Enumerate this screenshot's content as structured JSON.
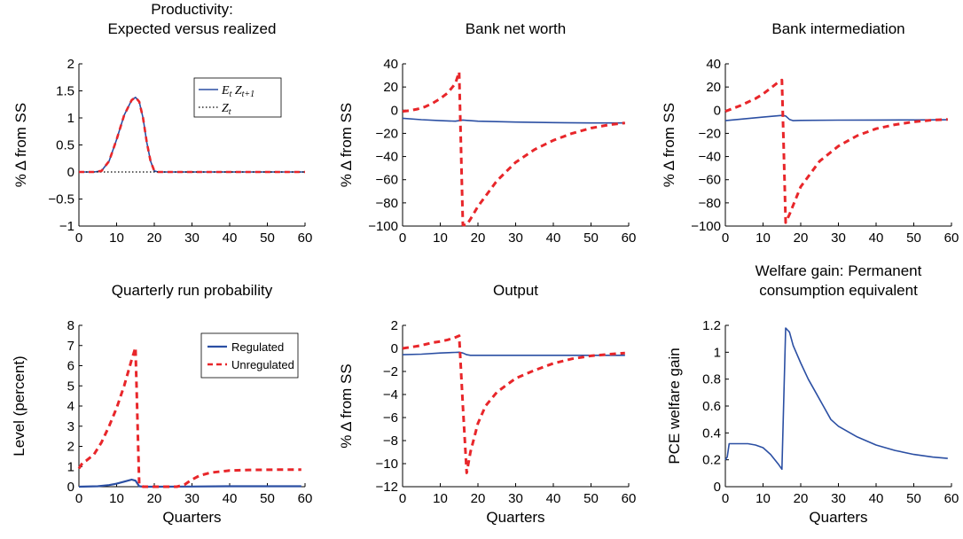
{
  "colors": {
    "regulated": "#2b4fa3",
    "unregulated": "#e8262a",
    "axis": "#000000",
    "dotted": "#000000"
  },
  "legend_top": {
    "items": [
      {
        "label": "E",
        "sub": "t",
        "label2": " Z",
        "sub2": "t+1"
      },
      {
        "label": "Z",
        "sub": "t"
      }
    ]
  },
  "legend_run": {
    "items": [
      {
        "label": "Regulated"
      },
      {
        "label": "Unregulated"
      }
    ]
  },
  "chart_data": [
    {
      "id": "productivity",
      "type": "line",
      "title": [
        "Productivity:",
        "Expected versus realized"
      ],
      "ylabel": "% Δ from SS",
      "xlabel": "",
      "xlim": [
        0,
        60
      ],
      "ylim": [
        -1,
        2
      ],
      "xticks": [
        "0",
        "10",
        "20",
        "30",
        "40",
        "50",
        "60"
      ],
      "yticks": [
        "−1",
        "−0.5",
        "0",
        "0.5",
        "1",
        "1.5",
        "2"
      ],
      "xtick_values": [
        0,
        10,
        20,
        30,
        40,
        50,
        60
      ],
      "ytick_values": [
        -1,
        -0.5,
        0,
        0.5,
        1,
        1.5,
        2
      ],
      "series": [
        {
          "name": "E_t Z_t+1",
          "style": "regulated",
          "x": [
            0,
            4,
            6,
            8,
            10,
            12,
            14,
            15,
            16,
            17,
            18,
            19,
            20,
            21,
            30,
            40,
            50,
            60
          ],
          "y": [
            0,
            0,
            0.02,
            0.2,
            0.6,
            1.05,
            1.33,
            1.38,
            1.3,
            1.0,
            0.55,
            0.2,
            0.02,
            0,
            0,
            0,
            0,
            0
          ]
        },
        {
          "name": "Z_t",
          "style": "dotted",
          "x": [
            0,
            60
          ],
          "y": [
            0,
            0
          ]
        },
        {
          "style": "unregulated-dash",
          "x": [
            0,
            4,
            6,
            8,
            10,
            12,
            14,
            15,
            16,
            17,
            18,
            19,
            20,
            21,
            30,
            40,
            50,
            60
          ],
          "y": [
            0,
            0,
            0.02,
            0.2,
            0.6,
            1.05,
            1.33,
            1.38,
            1.3,
            1.0,
            0.55,
            0.2,
            0.02,
            0,
            0,
            0,
            0,
            0
          ]
        }
      ]
    },
    {
      "id": "networth",
      "type": "line",
      "title": [
        "Bank net worth"
      ],
      "ylabel": "% Δ from SS",
      "xlabel": "",
      "xlim": [
        0,
        60
      ],
      "ylim": [
        -100,
        40
      ],
      "xticks": [
        "0",
        "10",
        "20",
        "30",
        "40",
        "50",
        "60"
      ],
      "yticks": [
        "−100",
        "−80",
        "−60",
        "−40",
        "−20",
        "0",
        "20",
        "40"
      ],
      "xtick_values": [
        0,
        10,
        20,
        30,
        40,
        50,
        60
      ],
      "ytick_values": [
        -100,
        -80,
        -60,
        -40,
        -20,
        0,
        20,
        40
      ],
      "series": [
        {
          "name": "Regulated",
          "style": "regulated",
          "x": [
            0,
            5,
            10,
            14,
            15,
            16,
            17,
            20,
            30,
            40,
            50,
            59
          ],
          "y": [
            -7,
            -8.2,
            -9,
            -9.5,
            -9,
            -8.5,
            -8.8,
            -9.5,
            -10.3,
            -10.7,
            -11,
            -11
          ]
        },
        {
          "name": "Unregulated",
          "style": "unregulated",
          "x": [
            0,
            2,
            4,
            6,
            8,
            10,
            12,
            14,
            15,
            16,
            17,
            18,
            20,
            25,
            30,
            35,
            40,
            45,
            50,
            55,
            59
          ],
          "y": [
            -1,
            -0.3,
            1,
            3,
            6,
            10,
            15,
            23,
            33,
            -99,
            -99,
            -94,
            -83,
            -61,
            -45,
            -34,
            -26,
            -20,
            -15.5,
            -12.5,
            -11
          ]
        }
      ]
    },
    {
      "id": "intermediation",
      "type": "line",
      "title": [
        "Bank intermediation"
      ],
      "ylabel": "% Δ from SS",
      "xlabel": "",
      "xlim": [
        0,
        60
      ],
      "ylim": [
        -100,
        40
      ],
      "xticks": [
        "0",
        "10",
        "20",
        "30",
        "40",
        "50",
        "60"
      ],
      "yticks": [
        "−100",
        "−80",
        "−60",
        "−40",
        "−20",
        "0",
        "20",
        "40"
      ],
      "xtick_values": [
        0,
        10,
        20,
        30,
        40,
        50,
        60
      ],
      "ytick_values": [
        -100,
        -80,
        -60,
        -40,
        -20,
        0,
        20,
        40
      ],
      "series": [
        {
          "name": "Regulated",
          "style": "regulated",
          "x": [
            0,
            5,
            10,
            14,
            15,
            16,
            17,
            18,
            20,
            30,
            40,
            50,
            59
          ],
          "y": [
            -9,
            -7.5,
            -6,
            -4.8,
            -4.5,
            -5,
            -8,
            -9,
            -8.8,
            -8.6,
            -8.5,
            -8.4,
            -8.3
          ]
        },
        {
          "name": "Unregulated",
          "style": "unregulated",
          "x": [
            0,
            2,
            4,
            6,
            8,
            10,
            12,
            14,
            15,
            16,
            17,
            18,
            20,
            25,
            30,
            35,
            40,
            45,
            50,
            55,
            59
          ],
          "y": [
            -1,
            1.5,
            4,
            7,
            10,
            14,
            19,
            24,
            26,
            -97,
            -90,
            -82,
            -66,
            -44,
            -31,
            -22,
            -16,
            -12.5,
            -10,
            -8.5,
            -8
          ]
        }
      ]
    },
    {
      "id": "runprob",
      "type": "line",
      "title": [
        "Quarterly run probability"
      ],
      "ylabel": "Level (percent)",
      "xlabel": "Quarters",
      "xlim": [
        0,
        60
      ],
      "ylim": [
        0,
        8
      ],
      "xticks": [
        "0",
        "10",
        "20",
        "30",
        "40",
        "50",
        "60"
      ],
      "yticks": [
        "0",
        "1",
        "2",
        "3",
        "4",
        "5",
        "6",
        "7",
        "8"
      ],
      "xtick_values": [
        0,
        10,
        20,
        30,
        40,
        50,
        60
      ],
      "ytick_values": [
        0,
        1,
        2,
        3,
        4,
        5,
        6,
        7,
        8
      ],
      "series": [
        {
          "name": "Regulated",
          "style": "regulated-thick",
          "x": [
            0,
            5,
            8,
            10,
            12,
            14,
            15,
            16,
            17,
            20,
            30,
            40,
            50,
            59
          ],
          "y": [
            0,
            0.02,
            0.08,
            0.15,
            0.25,
            0.35,
            0.3,
            0.02,
            0,
            0,
            0.01,
            0.02,
            0.02,
            0.02
          ]
        },
        {
          "name": "Unregulated",
          "style": "unregulated",
          "x": [
            0,
            1,
            2,
            4,
            6,
            8,
            10,
            12,
            14,
            15,
            16,
            17,
            20,
            26,
            28,
            30,
            32,
            35,
            40,
            45,
            50,
            55,
            59
          ],
          "y": [
            0.9,
            1.2,
            1.3,
            1.6,
            2.2,
            3,
            3.9,
            5,
            6.3,
            6.9,
            0.1,
            0,
            0,
            0,
            0.1,
            0.35,
            0.55,
            0.7,
            0.8,
            0.83,
            0.84,
            0.85,
            0.85
          ]
        }
      ]
    },
    {
      "id": "output",
      "type": "line",
      "title": [
        "Output"
      ],
      "ylabel": "% Δ from SS",
      "xlabel": "Quarters",
      "xlim": [
        0,
        60
      ],
      "ylim": [
        -12,
        2
      ],
      "xticks": [
        "0",
        "10",
        "20",
        "30",
        "40",
        "50",
        "60"
      ],
      "yticks": [
        "−12",
        "−10",
        "−8",
        "−6",
        "−4",
        "−2",
        "0",
        "2"
      ],
      "xtick_values": [
        0,
        10,
        20,
        30,
        40,
        50,
        60
      ],
      "ytick_values": [
        -12,
        -10,
        -8,
        -6,
        -4,
        -2,
        0,
        2
      ],
      "series": [
        {
          "name": "Regulated",
          "style": "regulated",
          "x": [
            0,
            5,
            10,
            14,
            15,
            16,
            17,
            18,
            20,
            30,
            40,
            50,
            59
          ],
          "y": [
            -0.55,
            -0.5,
            -0.4,
            -0.35,
            -0.33,
            -0.4,
            -0.55,
            -0.6,
            -0.6,
            -0.6,
            -0.6,
            -0.6,
            -0.6
          ]
        },
        {
          "name": "Unregulated",
          "style": "unregulated",
          "x": [
            0,
            2,
            4,
            6,
            8,
            10,
            12,
            14,
            15,
            16,
            17,
            18,
            20,
            22,
            25,
            30,
            35,
            40,
            45,
            50,
            55,
            59
          ],
          "y": [
            0,
            0.1,
            0.2,
            0.35,
            0.5,
            0.6,
            0.75,
            0.95,
            1.1,
            -5,
            -10.8,
            -9,
            -6.5,
            -5,
            -3.8,
            -2.6,
            -1.9,
            -1.3,
            -0.9,
            -0.65,
            -0.5,
            -0.4
          ]
        }
      ]
    },
    {
      "id": "welfare",
      "type": "line",
      "title": [
        "Welfare gain: Permanent",
        "consumption equivalent"
      ],
      "ylabel": "PCE welfare gain",
      "xlabel": "Quarters",
      "xlim": [
        0,
        60
      ],
      "ylim": [
        0,
        1.2
      ],
      "xticks": [
        "0",
        "10",
        "20",
        "30",
        "40",
        "50",
        "60"
      ],
      "yticks": [
        "0",
        "0.2",
        "0.4",
        "0.6",
        "0.8",
        "1",
        "1.2"
      ],
      "xtick_values": [
        0,
        10,
        20,
        30,
        40,
        50,
        60
      ],
      "ytick_values": [
        0,
        0.2,
        0.4,
        0.6,
        0.8,
        1,
        1.2
      ],
      "series": [
        {
          "name": "Welfare gain",
          "style": "regulated",
          "x": [
            0,
            0.5,
            1,
            2,
            4,
            6,
            8,
            10,
            12,
            14,
            15,
            16,
            17,
            18,
            20,
            22,
            24,
            26,
            28,
            30,
            35,
            40,
            45,
            50,
            55,
            59
          ],
          "y": [
            0.2,
            0.22,
            0.32,
            0.32,
            0.32,
            0.32,
            0.31,
            0.29,
            0.24,
            0.17,
            0.13,
            1.18,
            1.15,
            1.05,
            0.92,
            0.8,
            0.7,
            0.6,
            0.5,
            0.45,
            0.37,
            0.31,
            0.27,
            0.24,
            0.22,
            0.21
          ]
        }
      ]
    }
  ]
}
